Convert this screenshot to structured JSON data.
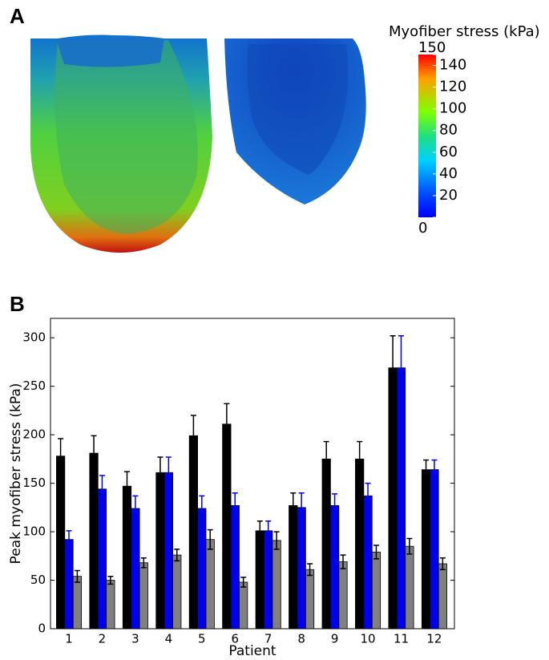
{
  "chart_data": [
    {
      "type": "colorbar",
      "label": "A",
      "title": "Myofiber stress (kPa)",
      "lim": [
        0,
        150
      ],
      "ticks": [
        0,
        20,
        40,
        60,
        80,
        100,
        120,
        140,
        150
      ]
    },
    {
      "type": "bar",
      "label": "B",
      "xlabel": "Patient",
      "ylabel": "Peak myofiber stress (kPa)",
      "categories": [
        "1",
        "2",
        "3",
        "4",
        "5",
        "6",
        "7",
        "8",
        "9",
        "10",
        "11",
        "12"
      ],
      "series": [
        {
          "color": "#000000",
          "error_color": "#000000",
          "values": [
            178,
            181,
            147,
            161,
            199,
            211,
            101,
            127,
            175,
            175,
            269,
            164
          ],
          "errors": [
            18,
            18,
            15,
            16,
            21,
            21,
            10,
            13,
            18,
            18,
            33,
            10
          ]
        },
        {
          "color": "#0000ee",
          "error_color": "#0000ee",
          "values": [
            92,
            144,
            124,
            161,
            124,
            127,
            101,
            125,
            127,
            137,
            269,
            164
          ],
          "errors": [
            9,
            14,
            13,
            16,
            13,
            13,
            10,
            15,
            12,
            13,
            33,
            10
          ]
        },
        {
          "color": "#808080",
          "error_color": "#000000",
          "values": [
            54,
            50,
            68,
            76,
            92,
            48,
            91,
            61,
            69,
            79,
            85,
            67
          ],
          "errors": [
            6,
            4,
            5,
            6,
            10,
            5,
            9,
            6,
            7,
            7,
            8,
            6
          ]
        }
      ],
      "ylim": [
        0,
        320
      ],
      "yticks": [
        0,
        50,
        100,
        150,
        200,
        250,
        300
      ]
    }
  ]
}
